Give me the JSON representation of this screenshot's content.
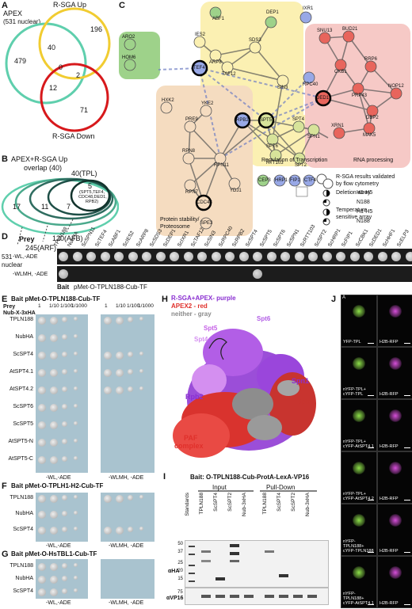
{
  "panelA": {
    "label": "A",
    "apex_title": "APEX",
    "apex_sub": "(531 nuclear)",
    "up_title": "R-SGA Up",
    "down_title": "R-SGA Down",
    "n479": "479",
    "n196": "196",
    "n40": "40",
    "n0": "0",
    "n2": "2",
    "n12": "12",
    "n71": "71"
  },
  "panelB": {
    "label": "B",
    "title1": "APEX+R-SGA Up",
    "title2": "overlap (40)",
    "n17": "17",
    "n11": "11",
    "n7": "7",
    "n5": "5",
    "set5": "(SPT5,TEF4, CDC48,DED1, RPB2)",
    "tpl": "40(TPL)",
    "afb": "130(AFB)",
    "arf": "245(ARF)",
    "nuclear1": "531",
    "nuclear2": "nuclear"
  },
  "panelC": {
    "label": "C",
    "nodes": [
      "ABF1",
      "DEP1",
      "IXR1",
      "ARO2",
      "IES2",
      "SDS3",
      "HOM6",
      "ARP8",
      "TAF12",
      "SIN3",
      "TEF4",
      "RPC40",
      "SNU13",
      "BUD21",
      "CKB1",
      "RRP6",
      "PRP43",
      "NOP12",
      "DED1",
      "DBP2",
      "MAK5",
      "XRN1",
      "HXK2",
      "YKE2",
      "PRE9",
      "RPN8",
      "RPN11",
      "RPN7",
      "YDJ1",
      "CDC48",
      "SPE3",
      "SPT5",
      "RPB2",
      "SPN1",
      "SPT6",
      "SPT4",
      "RTT103",
      "SPT2",
      "CEP3",
      "HRP1",
      "FIP1",
      "CTF4"
    ],
    "box_rna": "RNA processing",
    "box_tx": "Regulation of Transcription",
    "box_prot1": "Protein stability/",
    "box_prot2": "Proteosome",
    "legend_title1": "R-SGA results validated",
    "legend_title2": "by flow cytometry",
    "legend_del": "Deletion array",
    "legend_temp1": "Temperature",
    "legend_temp2": "sensitive array",
    "h1": "H1-H5",
    "n188": "N188",
    "colors": {
      "yellow": "#fbf0b2",
      "pink": "#f6c9c6",
      "tan": "#f5dcc0",
      "green": "#9ed28a",
      "red": "#e8655c",
      "blue": "#98a8e6",
      "ygreen": "#d7e39a"
    }
  },
  "panelD": {
    "label": "D",
    "prey": "Prey",
    "preys": [
      "TPLN188",
      "NubHA",
      "ScSPN11",
      "ScTEF4",
      "ScABF1",
      "ScIES2",
      "ScARP8",
      "ScSDS3",
      "ScDEP1",
      "ScIXR1",
      "ScTAF12",
      "ScSIN3",
      "ScRPC40",
      "ScRPB2",
      "ScSPT4",
      "ScSPT5",
      "ScSPT6",
      "ScSPN1",
      "ScRTT103",
      "ScSPT2",
      "ScHRP1",
      "ScFIP1",
      "ScCBK1",
      "ScDED1",
      "ScHHF1",
      "ScELP3"
    ],
    "row1": "-WL,-ADE",
    "row2": "-WLMH, -ADE",
    "bait_pre": "Bait",
    "bait": "pMet-O-TPLN188-Cub-TF"
  },
  "panelE": {
    "label": "E",
    "bait": "Bait pMet-O-TPLN188-Cub-TF",
    "prey_head1": "Prey",
    "prey_head2": "Nub-X-3xHA",
    "dil": [
      "1",
      "1/10",
      "1/100",
      "1/1000"
    ],
    "rows": [
      "TPLN188",
      "NubHA",
      "ScSPT4",
      "AtSPT4.1",
      "AtSPT4.2",
      "ScSPT6",
      "ScSPT5",
      "AtSPT5-N",
      "AtSPT5-C"
    ],
    "cond1": "-WL,-ADE",
    "cond2": "-WLMH, -ADE"
  },
  "panelF": {
    "label": "F",
    "bait": "Bait pMet-O-TPLH1-H2-Cub-TF",
    "rows": [
      "TPLN188",
      "NubHA",
      "ScSPT4"
    ],
    "cond1": "-WL,-ADE",
    "cond2": "-WLMH, -ADE"
  },
  "panelG": {
    "label": "G",
    "bait": "Bait pMet-O-HsTBL1-Cub-TF",
    "rows": [
      "TPLN188",
      "NubHA",
      "ScSPT4"
    ],
    "cond1": "-WL,-ADE",
    "cond2": "-WLMH, -ADE"
  },
  "panelH": {
    "label": "H",
    "leg1": "R-SGA+APEX- purple",
    "leg2": "APEX2 - red",
    "leg3": "neither - gray",
    "spt6": "Spt6",
    "spt5": "Spt5",
    "spt4": "Spt4",
    "spn1": "Spn1",
    "rpb2": "Rpb2",
    "rpb1": "Rpb1",
    "paf1": "PAF",
    "paf2": "complex"
  },
  "panelI": {
    "label": "I",
    "title": "Bait: O-TPLN188-Cub-ProtA-LexA-VP16",
    "input": "Input",
    "pulldown": "Pull-Down",
    "standards": "Standards",
    "lanes": [
      "TPLN188",
      "ScSPT4",
      "ScSPT2",
      "Nub-3xHA",
      "TPLN188",
      "ScSPT4",
      "ScSPT2",
      "Nub-3xHA"
    ],
    "mw": [
      "50",
      "37",
      "25",
      "20",
      "15"
    ],
    "mw2": "75",
    "aHA": "αHA",
    "aVP16": "αVP16"
  },
  "panelJ": {
    "label": "J",
    "sub": "A",
    "rows": [
      {
        "left": "YFP-TPL",
        "right": "H2B-RFP"
      },
      {
        "left": "nYFP-TPL+ cYFP-TPL",
        "right": "H2B-RFP"
      },
      {
        "left": "nYFP-TPL+ cYFP-AtSPT4.1",
        "right": "H2B-RFP"
      },
      {
        "left": "nYFP-TPL+ cYFP-AtSPT4.2",
        "right": "H2B-RFP"
      },
      {
        "left": "nYFP-TPLN188+ cYFP-TPLN188",
        "right": "H2B-RFP"
      },
      {
        "left": "nYFP-TPLN188+ cYFP-AtSPT4.1",
        "right": "H2B-RFP"
      }
    ]
  }
}
